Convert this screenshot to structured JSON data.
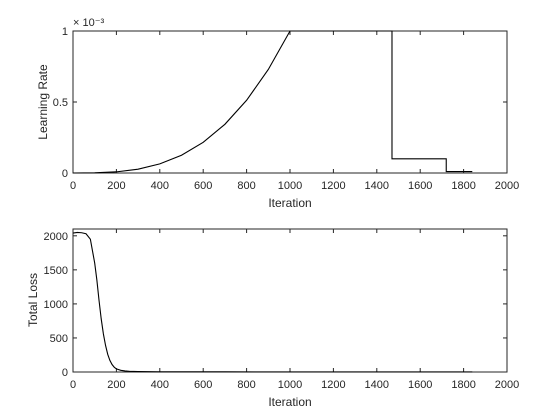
{
  "chart_data": [
    {
      "type": "line",
      "xlabel": "Iteration",
      "ylabel": "Learning Rate",
      "exponent_label": "× 10⁻³",
      "xlim": [
        0,
        2000
      ],
      "ylim": [
        0,
        0.001
      ],
      "xticks": [
        "0",
        "200",
        "400",
        "600",
        "800",
        "1000",
        "1200",
        "1400",
        "1600",
        "1800",
        "2000"
      ],
      "yticks": [
        "0",
        "0.5",
        "1"
      ],
      "grid": false,
      "series": [
        {
          "values": {
            "x": [
              0,
              100,
              200,
              300,
              400,
              500,
              600,
              700,
              800,
              900,
              1000,
              1470,
              1470,
              1720,
              1720,
              1840
            ],
            "y": [
              0,
              1e-06,
              8e-06,
              2.7e-05,
              6.4e-05,
              0.000125,
              0.000216,
              0.000343,
              0.000512,
              0.000729,
              0.001,
              0.001,
              0.0001,
              0.0001,
              1e-05,
              1e-05
            ]
          }
        }
      ]
    },
    {
      "type": "line",
      "xlabel": "Iteration",
      "ylabel": "Total Loss",
      "xlim": [
        0,
        2000
      ],
      "ylim": [
        0,
        2100
      ],
      "xticks": [
        "0",
        "200",
        "400",
        "600",
        "800",
        "1000",
        "1200",
        "1400",
        "1600",
        "1800",
        "2000"
      ],
      "yticks": [
        "0",
        "500",
        "1000",
        "1500",
        "2000"
      ],
      "grid": false,
      "series": [
        {
          "values": {
            "x": [
              0,
              20,
              40,
              60,
              80,
              100,
              110,
              120,
              130,
              140,
              150,
              160,
              170,
              180,
              190,
              200,
              220,
              240,
              260,
              300,
              350,
              400,
              500,
              700,
              1000,
              1500,
              1840
            ],
            "y": [
              2040,
              2050,
              2045,
              2030,
              1950,
              1600,
              1350,
              1050,
              780,
              560,
              390,
              260,
              170,
              110,
              70,
              45,
              25,
              15,
              10,
              6,
              4,
              3,
              2,
              2,
              1,
              1,
              1
            ]
          }
        }
      ]
    }
  ]
}
